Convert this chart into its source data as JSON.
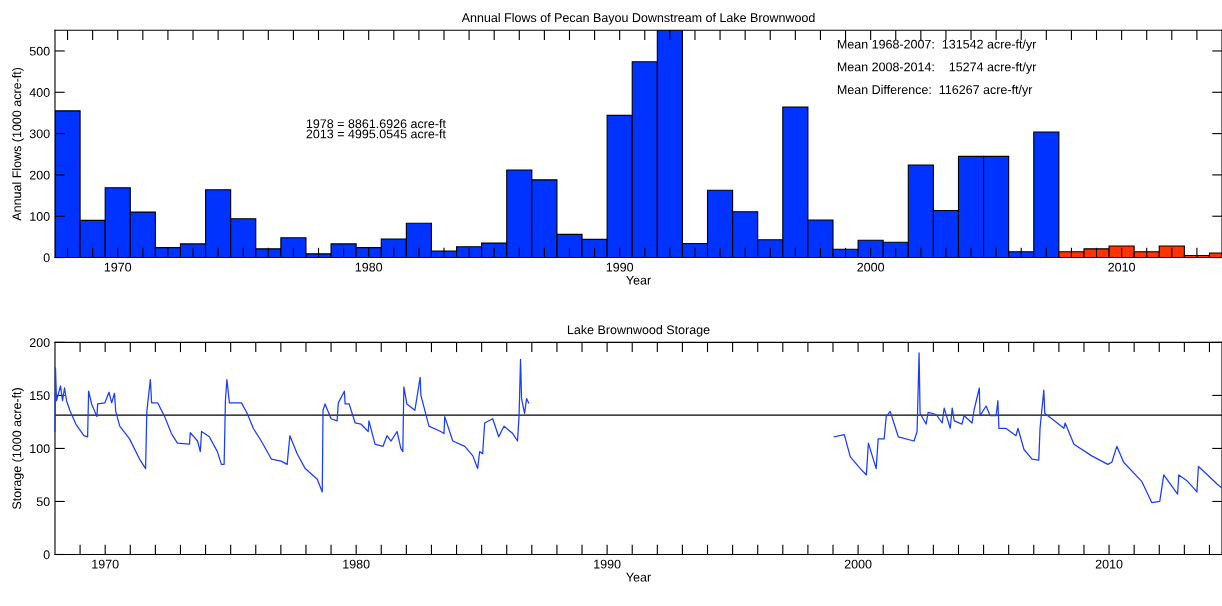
{
  "chart_data": [
    {
      "type": "bar",
      "title": "Annual Flows of Pecan Bayou Downstream of Lake Brownwood",
      "xlabel": "Year",
      "ylabel": "Annual Flows (1000 acre-ft)",
      "x": [
        1968,
        1969,
        1970,
        1971,
        1972,
        1973,
        1974,
        1975,
        1976,
        1977,
        1978,
        1979,
        1980,
        1981,
        1982,
        1983,
        1984,
        1985,
        1986,
        1987,
        1988,
        1989,
        1990,
        1991,
        1992,
        1993,
        1994,
        1995,
        1996,
        1997,
        1998,
        1999,
        2000,
        2001,
        2002,
        2003,
        2004,
        2005,
        2006,
        2007,
        2008,
        2009,
        2010,
        2011,
        2012,
        2013,
        2014
      ],
      "values": [
        355,
        90,
        169,
        110,
        24,
        33,
        164,
        94,
        21,
        48,
        9,
        33,
        24,
        45,
        83,
        16,
        26,
        35,
        212,
        188,
        56,
        44,
        344,
        474,
        550,
        34,
        163,
        111,
        43,
        364,
        91,
        20,
        42,
        37,
        224,
        114,
        245,
        245,
        14,
        304,
        14,
        21,
        28,
        14,
        28,
        5,
        11
      ],
      "colors": [
        "#0033ff",
        "#0033ff",
        "#0033ff",
        "#0033ff",
        "#0033ff",
        "#0033ff",
        "#0033ff",
        "#0033ff",
        "#0033ff",
        "#0033ff",
        "#0033ff",
        "#0033ff",
        "#0033ff",
        "#0033ff",
        "#0033ff",
        "#0033ff",
        "#0033ff",
        "#0033ff",
        "#0033ff",
        "#0033ff",
        "#0033ff",
        "#0033ff",
        "#0033ff",
        "#0033ff",
        "#0033ff",
        "#0033ff",
        "#0033ff",
        "#0033ff",
        "#0033ff",
        "#0033ff",
        "#0033ff",
        "#0033ff",
        "#0033ff",
        "#0033ff",
        "#0033ff",
        "#0033ff",
        "#0033ff",
        "#0033ff",
        "#0033ff",
        "#0033ff",
        "#ff3300",
        "#ff3300",
        "#ff3300",
        "#ff3300",
        "#ff3300",
        "#ff3300",
        "#ff3300"
      ],
      "xlim": [
        1967.5,
        2014
      ],
      "ylim": [
        0,
        550
      ],
      "yticks": [
        0,
        100,
        200,
        300,
        400,
        500
      ],
      "xticks": [
        {
          "value": 1968,
          "label": null
        },
        {
          "value": 1969,
          "label": null
        },
        1970,
        {
          "value": 1971,
          "label": null
        },
        {
          "value": 1972,
          "label": null
        },
        {
          "value": 1973,
          "label": null
        },
        {
          "value": 1974,
          "label": null
        },
        {
          "value": 1975,
          "label": null
        },
        {
          "value": 1976,
          "label": null
        },
        {
          "value": 1977,
          "label": null
        },
        {
          "value": 1978,
          "label": null
        },
        {
          "value": 1979,
          "label": null
        },
        1980,
        {
          "value": 1981,
          "label": null
        },
        {
          "value": 1982,
          "label": null
        },
        {
          "value": 1983,
          "label": null
        },
        {
          "value": 1984,
          "label": null
        },
        {
          "value": 1985,
          "label": null
        },
        {
          "value": 1986,
          "label": null
        },
        {
          "value": 1987,
          "label": null
        },
        {
          "value": 1988,
          "label": null
        },
        {
          "value": 1989,
          "label": null
        },
        1990,
        {
          "value": 1991,
          "label": null
        },
        {
          "value": 1992,
          "label": null
        },
        {
          "value": 1993,
          "label": null
        },
        {
          "value": 1994,
          "label": null
        },
        {
          "value": 1995,
          "label": null
        },
        {
          "value": 1996,
          "label": null
        },
        {
          "value": 1997,
          "label": null
        },
        {
          "value": 1998,
          "label": null
        },
        {
          "value": 1999,
          "label": null
        },
        2000,
        {
          "value": 2001,
          "label": null
        },
        {
          "value": 2002,
          "label": null
        },
        {
          "value": 2003,
          "label": null
        },
        {
          "value": 2004,
          "label": null
        },
        {
          "value": 2005,
          "label": null
        },
        {
          "value": 2006,
          "label": null
        },
        {
          "value": 2007,
          "label": null
        },
        {
          "value": 2008,
          "label": null
        },
        {
          "value": 2009,
          "label": null
        },
        2010,
        {
          "value": 2011,
          "label": null
        },
        {
          "value": 2012,
          "label": null
        },
        {
          "value": 2013,
          "label": null
        }
      ],
      "grid": false,
      "annotations": [
        "1978 = 8861.6926 acre-ft",
        "2013 = 4995.0545 acre-ft",
        "Mean 1968-2007:  131542 acre-ft/yr",
        "Mean 2008-2014:    15274 acre-ft/yr",
        "Mean Difference:  116267 acre-ft/yr"
      ]
    },
    {
      "type": "line",
      "title": "Lake Brownwood Storage",
      "xlabel": "Year",
      "ylabel": "Storage (1000 acre-ft)",
      "series": [
        {
          "color": "#1a3cff",
          "x": [
            1968.0,
            1968.02,
            1968.06,
            1968.22,
            1968.3,
            1968.38,
            1968.46,
            1968.59,
            1968.83,
            1969.15,
            1969.3,
            1969.34,
            1969.46,
            1969.67,
            1969.7,
            1969.99,
            1970.15,
            1970.26,
            1970.37,
            1970.42,
            1970.58,
            1970.97,
            1971.37,
            1971.61,
            1971.66,
            1971.8,
            1971.85,
            1972.09,
            1972.37,
            1972.64,
            1972.88,
            1973.36,
            1973.39,
            1973.68,
            1973.79,
            1973.84,
            1974.15,
            1974.47,
            1974.63,
            1974.74,
            1974.79,
            1974.85,
            1974.95,
            1975.43,
            1975.66,
            1975.9,
            1976.22,
            1976.62,
            1977.01,
            1977.25,
            1977.36,
            1977.65,
            1977.97,
            1978.45,
            1978.65,
            1978.68,
            1978.76,
            1979.0,
            1979.24,
            1979.29,
            1979.53,
            1979.56,
            1979.72,
            1979.96,
            1980.19,
            1980.48,
            1980.51,
            1980.75,
            1981.07,
            1981.23,
            1981.39,
            1981.63,
            1981.78,
            1981.86,
            1981.9,
            1982.02,
            1982.34,
            1982.55,
            1982.58,
            1982.9,
            1983.37,
            1983.5,
            1983.53,
            1983.85,
            1984.33,
            1984.65,
            1984.84,
            1984.92,
            1985.04,
            1985.12,
            1985.44,
            1985.68,
            1985.89,
            1986.24,
            1986.43,
            1986.49,
            1986.55,
            1986.59,
            1986.71,
            1986.79,
            1986.87,
            1993.0,
            1999.05,
            1999.45,
            1999.69,
            2000.09,
            2000.33,
            2000.41,
            2000.72,
            2000.8,
            2001.04,
            2001.12,
            2001.28,
            2001.6,
            2002.23,
            2002.35,
            2002.43,
            2002.47,
            2002.71,
            2002.79,
            2003.11,
            2003.35,
            2003.43,
            2003.67,
            2003.75,
            2003.83,
            2004.14,
            2004.22,
            2004.54,
            2004.62,
            2004.83,
            2004.86,
            2005.1,
            2005.26,
            2005.5,
            2005.57,
            2005.61,
            2005.89,
            2006.29,
            2006.37,
            2006.61,
            2006.93,
            2007.2,
            2007.25,
            2007.4,
            2007.44,
            2007.72,
            2008.2,
            2008.25,
            2008.6,
            2009.31,
            2009.95,
            2010.11,
            2010.31,
            2010.58,
            2011.3,
            2011.7,
            2012.02,
            2012.18,
            2012.73,
            2012.78,
            2013.13,
            2013.5,
            2013.56,
            2013.93,
            2014.32,
            2014.48
          ],
          "values": [
            116,
            176,
            145,
            159,
            145,
            157,
            145,
            136,
            123,
            112,
            111,
            154,
            142,
            130,
            142,
            143,
            153,
            143,
            152,
            135,
            121,
            109,
            90,
            81,
            135,
            165,
            143,
            143,
            130,
            114,
            105,
            104,
            115,
            107,
            97,
            116,
            111,
            97,
            85,
            85,
            145,
            165,
            143,
            143,
            133,
            119,
            107,
            90,
            88,
            85,
            112,
            95,
            81,
            71,
            59,
            136,
            142,
            128,
            126,
            143,
            154,
            142,
            142,
            124,
            123,
            116,
            126,
            104,
            102,
            112,
            107,
            116,
            100,
            97,
            158,
            142,
            136,
            167,
            150,
            121,
            116,
            114,
            130,
            107,
            102,
            93,
            81,
            97,
            95,
            124,
            128,
            111,
            121,
            114,
            107,
            130,
            184,
            147,
            133,
            147,
            143,
            null,
            111,
            113,
            92,
            81,
            75,
            105,
            81,
            109,
            109,
            130,
            135,
            111,
            107,
            116,
            190,
            133,
            123,
            134,
            132,
            124,
            138,
            119,
            138,
            126,
            123,
            131,
            124,
            136,
            157,
            131,
            140,
            131,
            131,
            145,
            119,
            119,
            112,
            119,
            99,
            90,
            89,
            119,
            155,
            133,
            128,
            119,
            124,
            104,
            93,
            85,
            87,
            102,
            87,
            69,
            49,
            50,
            75,
            57,
            75,
            69,
            59,
            83,
            75,
            66,
            63
          ]
        }
      ],
      "xlim": [
        1968,
        2014.5
      ],
      "ylim": [
        0,
        200
      ],
      "yticks": [
        0,
        50,
        100,
        150,
        200
      ],
      "xticks": [
        {
          "value": 1969,
          "label": null
        },
        1970,
        {
          "value": 1971,
          "label": null
        },
        {
          "value": 1972,
          "label": null
        },
        {
          "value": 1973,
          "label": null
        },
        {
          "value": 1974,
          "label": null
        },
        {
          "value": 1975,
          "label": null
        },
        {
          "value": 1976,
          "label": null
        },
        {
          "value": 1977,
          "label": null
        },
        {
          "value": 1978,
          "label": null
        },
        {
          "value": 1979,
          "label": null
        },
        1980,
        {
          "value": 1981,
          "label": null
        },
        {
          "value": 1982,
          "label": null
        },
        {
          "value": 1983,
          "label": null
        },
        {
          "value": 1984,
          "label": null
        },
        {
          "value": 1985,
          "label": null
        },
        {
          "value": 1986,
          "label": null
        },
        {
          "value": 1987,
          "label": null
        },
        {
          "value": 1988,
          "label": null
        },
        {
          "value": 1989,
          "label": null
        },
        1990,
        {
          "value": 1991,
          "label": null
        },
        {
          "value": 1992,
          "label": null
        },
        {
          "value": 1993,
          "label": null
        },
        {
          "value": 1994,
          "label": null
        },
        {
          "value": 1995,
          "label": null
        },
        {
          "value": 1996,
          "label": null
        },
        {
          "value": 1997,
          "label": null
        },
        {
          "value": 1998,
          "label": null
        },
        {
          "value": 1999,
          "label": null
        },
        2000,
        {
          "value": 2001,
          "label": null
        },
        {
          "value": 2002,
          "label": null
        },
        {
          "value": 2003,
          "label": null
        },
        {
          "value": 2004,
          "label": null
        },
        {
          "value": 2005,
          "label": null
        },
        {
          "value": 2006,
          "label": null
        },
        {
          "value": 2007,
          "label": null
        },
        {
          "value": 2008,
          "label": null
        },
        {
          "value": 2009,
          "label": null
        },
        2010,
        {
          "value": 2011,
          "label": null
        },
        {
          "value": 2012,
          "label": null
        },
        {
          "value": 2013,
          "label": null
        },
        {
          "value": 2014,
          "label": null
        }
      ],
      "grid": false,
      "marker": "none",
      "line_style": "solid",
      "ref_lines": [
        {
          "axis": "y",
          "value": 131.5,
          "color": "#000000"
        }
      ]
    }
  ]
}
